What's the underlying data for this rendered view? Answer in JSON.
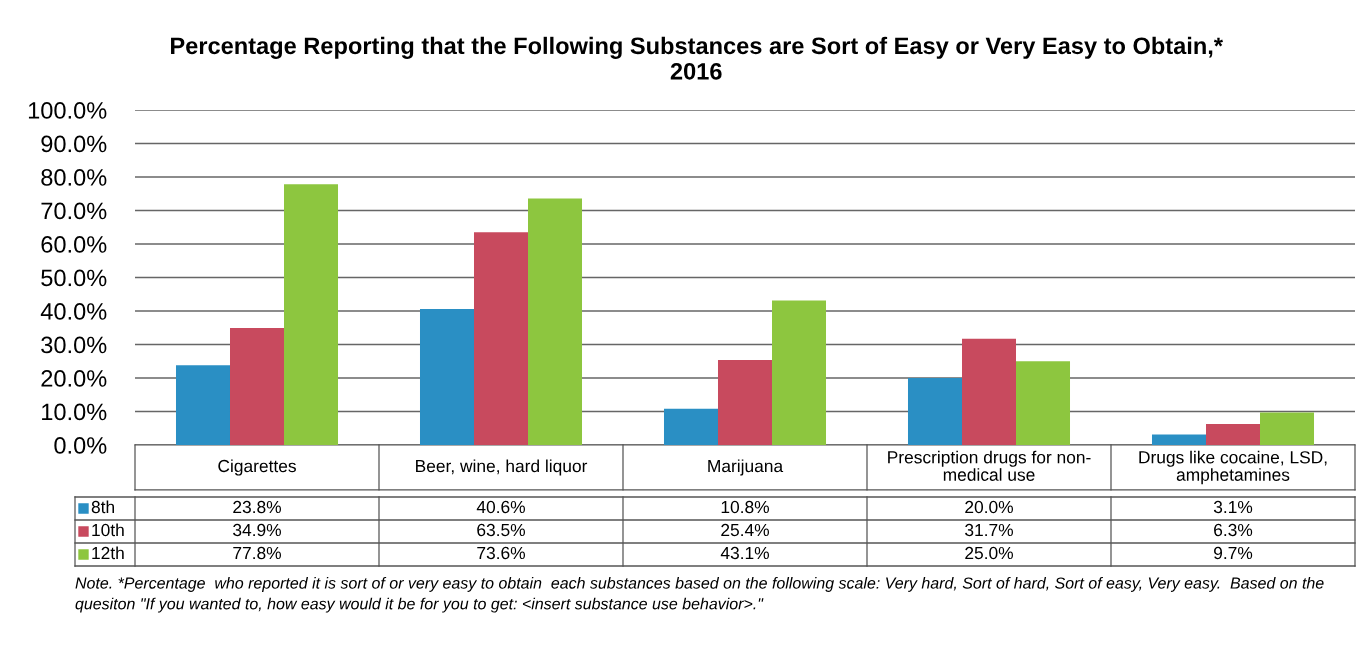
{
  "chart_data": {
    "type": "bar",
    "title": "Percentage Reporting that the Following Substances are Sort of Easy or Very Easy to Obtain,*\n2016",
    "categories": [
      "Cigarettes",
      "Beer, wine, hard liquor",
      "Marijuana",
      "Prescription drugs for non-\nmedical use",
      "Drugs like cocaine, LSD,\namphetamines"
    ],
    "series": [
      {
        "name": "8th",
        "color": "#2a8fc4",
        "values": [
          23.8,
          40.6,
          10.8,
          20.0,
          3.1
        ],
        "value_labels": [
          "23.8%",
          "40.6%",
          "10.8%",
          "20.0%",
          "3.1%"
        ]
      },
      {
        "name": "10th",
        "color": "#c84a5e",
        "values": [
          34.9,
          63.5,
          25.4,
          31.7,
          6.3
        ],
        "value_labels": [
          "34.9%",
          "63.5%",
          "25.4%",
          "31.7%",
          "6.3%"
        ]
      },
      {
        "name": "12th",
        "color": "#8dc63f",
        "values": [
          77.8,
          73.6,
          43.1,
          25.0,
          9.7
        ],
        "value_labels": [
          "77.8%",
          "73.6%",
          "43.1%",
          "25.0%",
          "9.7%"
        ]
      }
    ],
    "ylim": [
      0,
      100
    ],
    "yticks": [
      {
        "value": 0,
        "label": "0.0%"
      },
      {
        "value": 10,
        "label": "10.0%"
      },
      {
        "value": 20,
        "label": "20.0%"
      },
      {
        "value": 30,
        "label": "30.0%"
      },
      {
        "value": 40,
        "label": "40.0%"
      },
      {
        "value": 50,
        "label": "50.0%"
      },
      {
        "value": 60,
        "label": "60.0%"
      },
      {
        "value": 70,
        "label": "70.0%"
      },
      {
        "value": 80,
        "label": "80.0%"
      },
      {
        "value": 90,
        "label": "90.0%"
      },
      {
        "value": 100,
        "label": "100.0%"
      }
    ],
    "grid": "y",
    "legend": "bottom",
    "annotations": [
      "Note. *Percentage  who reported it is sort of or very easy to obtain  each substances based on the following scale: Very hard, Sort of hard, Sort of easy, Very easy.  Based on the quesiton \"If you wanted to, how easy would it be for you to get: <insert substance use behavior>.\""
    ]
  }
}
